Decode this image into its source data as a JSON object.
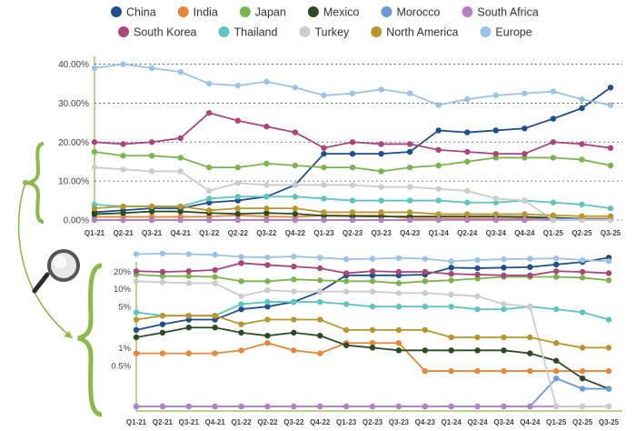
{
  "chart_data": [
    {
      "type": "line",
      "title": "",
      "scale": "linear",
      "ylim": [
        0,
        42
      ],
      "yticks": [
        {
          "value": 0,
          "label": "0.00%"
        },
        {
          "value": 10,
          "label": "10.00%"
        },
        {
          "value": 20,
          "label": "20.00%"
        },
        {
          "value": 30,
          "label": "30.00%"
        },
        {
          "value": 40,
          "label": "40.00%"
        }
      ],
      "categories": [
        "Q1-21",
        "Q2-21",
        "Q3-21",
        "Q4-21",
        "Q1-22",
        "Q2-22",
        "Q3-22",
        "Q4-22",
        "Q1-23",
        "Q2-23",
        "Q3-23",
        "Q4-23",
        "Q1-24",
        "Q2-24",
        "Q3-24",
        "Q4-24",
        "Q1-25",
        "Q2-25",
        "Q3-25"
      ],
      "series": [
        {
          "name": "China",
          "color": "#1f4e8c",
          "values": [
            2.0,
            2.5,
            3.0,
            3.0,
            4.5,
            5.0,
            6.0,
            9.0,
            17.0,
            17.0,
            17.0,
            17.5,
            23.0,
            22.5,
            23.0,
            23.5,
            26.0,
            28.7,
            34.0
          ]
        },
        {
          "name": "India",
          "color": "#e8873a",
          "values": [
            0.8,
            0.8,
            0.8,
            0.8,
            0.9,
            1.2,
            0.9,
            0.8,
            1.2,
            1.2,
            1.2,
            0.4,
            0.4,
            0.4,
            0.4,
            0.4,
            0.4,
            0.4,
            0.4
          ]
        },
        {
          "name": "Japan",
          "color": "#7bb450",
          "values": [
            17.5,
            16.5,
            16.5,
            16.0,
            13.5,
            13.5,
            14.5,
            14.0,
            13.5,
            13.5,
            12.5,
            13.5,
            14.0,
            15.0,
            16.0,
            16.0,
            16.0,
            15.5,
            14.0
          ]
        },
        {
          "name": "Mexico",
          "color": "#2d4a22",
          "values": [
            1.5,
            1.8,
            2.2,
            2.2,
            1.8,
            1.6,
            1.8,
            1.6,
            1.1,
            1.0,
            0.9,
            0.9,
            0.9,
            0.9,
            0.9,
            0.8,
            0.6,
            0.3,
            0.2
          ]
        },
        {
          "name": "Morocco",
          "color": "#6a9ad6",
          "values": [
            0.01,
            0.01,
            0.01,
            0.01,
            0.01,
            0.01,
            0.01,
            0.01,
            0.01,
            0.01,
            0.01,
            0.01,
            0.01,
            0.01,
            0.01,
            0.01,
            0.3,
            0.2,
            0.2
          ]
        },
        {
          "name": "South Africa",
          "color": "#b381c2",
          "values": [
            0.01,
            0.01,
            0.01,
            0.01,
            0.01,
            0.01,
            0.01,
            0.01,
            0.01,
            0.01,
            0.01,
            0.01,
            0.1,
            0.1,
            0.1,
            0.1,
            0.01,
            0.01,
            0.01
          ]
        },
        {
          "name": "South Korea",
          "color": "#a8467a",
          "values": [
            20.0,
            19.5,
            20.0,
            21.0,
            27.5,
            25.5,
            24.0,
            22.5,
            18.5,
            20.0,
            19.5,
            19.5,
            18.0,
            17.5,
            17.0,
            17.0,
            20.0,
            19.5,
            18.5
          ]
        },
        {
          "name": "Thailand",
          "color": "#5fc4c0",
          "values": [
            4.0,
            3.5,
            3.5,
            3.5,
            5.5,
            6.0,
            6.0,
            6.0,
            5.5,
            5.0,
            5.0,
            5.0,
            5.0,
            4.5,
            4.5,
            5.0,
            4.5,
            4.0,
            3.0
          ]
        },
        {
          "name": "Turkey",
          "color": "#cccccc",
          "values": [
            13.5,
            13.0,
            12.5,
            12.5,
            7.5,
            9.5,
            9.0,
            9.0,
            9.0,
            9.0,
            8.5,
            8.5,
            8.0,
            7.5,
            5.5,
            5.0,
            0.01,
            0.01,
            0.01
          ]
        },
        {
          "name": "North America",
          "color": "#b8962e",
          "values": [
            3.0,
            3.5,
            3.5,
            3.5,
            2.5,
            3.0,
            3.0,
            3.0,
            2.0,
            2.0,
            2.0,
            2.0,
            1.5,
            1.5,
            1.5,
            1.5,
            1.2,
            1.0,
            1.0
          ]
        },
        {
          "name": "Europe",
          "color": "#9cc3e6",
          "values": [
            39.0,
            40.0,
            39.0,
            38.0,
            35.0,
            34.5,
            35.5,
            34.0,
            32.0,
            32.5,
            33.5,
            32.5,
            29.5,
            31.0,
            32.0,
            32.5,
            33.0,
            31.0,
            29.5
          ]
        }
      ]
    },
    {
      "type": "line",
      "title": "",
      "scale": "log",
      "ylim": [
        0.1,
        25
      ],
      "yticks": [
        {
          "value": 20,
          "label": "20%"
        },
        {
          "value": 10,
          "label": "10%"
        },
        {
          "value": 5,
          "label": "5%"
        },
        {
          "value": 1,
          "label": "1%"
        },
        {
          "value": 0.5,
          "label": "0.5%"
        }
      ],
      "categories": [
        "Q1-21",
        "Q2-21",
        "Q3-21",
        "Q4-21",
        "Q1-22",
        "Q2-22",
        "Q3-22",
        "Q4-22",
        "Q1-23",
        "Q2-23",
        "Q3-23",
        "Q4-23",
        "Q1-24",
        "Q2-24",
        "Q3-24",
        "Q4-24",
        "Q1-25",
        "Q2-25",
        "Q3-25"
      ],
      "note": "same series as chart 1 shown on a logarithmic scale"
    }
  ],
  "legend": [
    {
      "name": "China",
      "color": "#1f4e8c"
    },
    {
      "name": "India",
      "color": "#e8873a"
    },
    {
      "name": "Japan",
      "color": "#7bb450"
    },
    {
      "name": "Mexico",
      "color": "#2d4a22"
    },
    {
      "name": "Morocco",
      "color": "#6a9ad6"
    },
    {
      "name": "South Africa",
      "color": "#b381c2"
    },
    {
      "name": "South Korea",
      "color": "#a8467a"
    },
    {
      "name": "Thailand",
      "color": "#5fc4c0"
    },
    {
      "name": "Turkey",
      "color": "#cccccc"
    },
    {
      "name": "North America",
      "color": "#b8962e"
    },
    {
      "name": "Europe",
      "color": "#9cc3e6"
    }
  ],
  "annotation": {
    "accent": "#8fb84a",
    "icon": "magnifier-icon"
  }
}
